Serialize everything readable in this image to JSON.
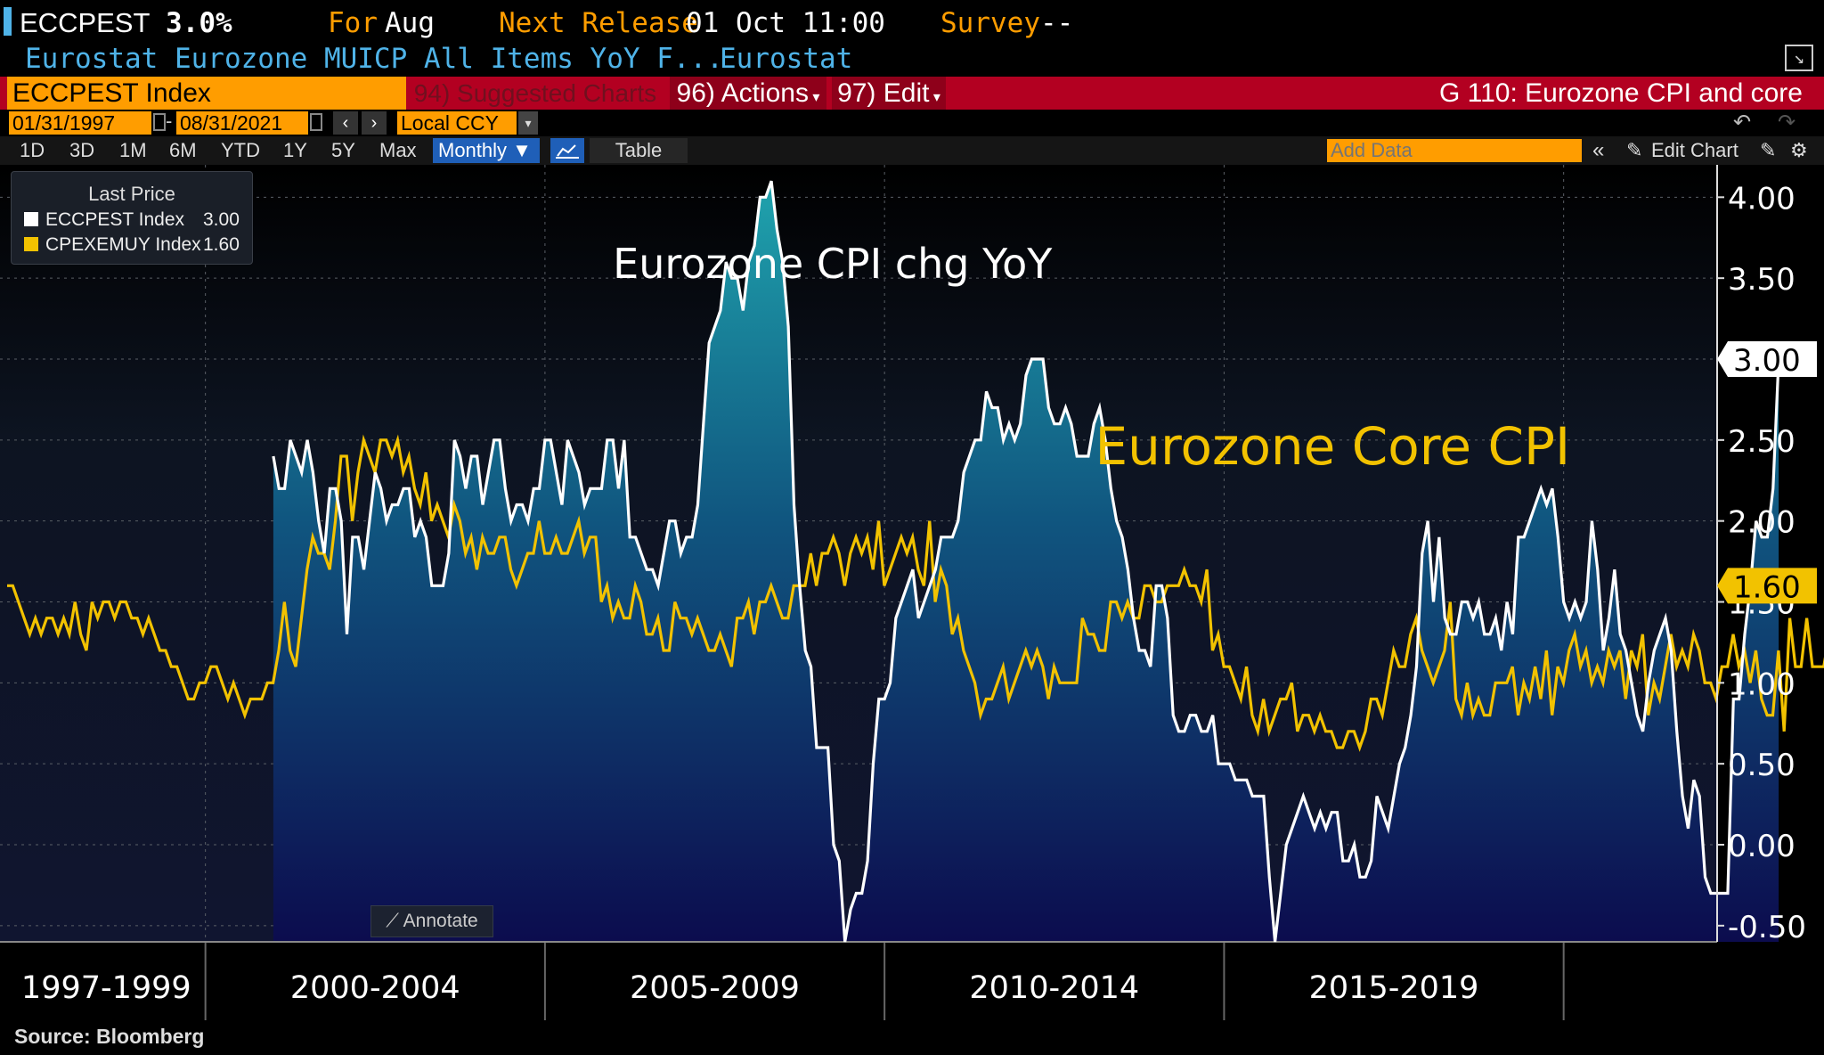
{
  "header": {
    "ticker": "ECCPEST",
    "value": "3.0%",
    "for_label": "For",
    "for_value": "Aug",
    "next_release_label": "Next Release",
    "next_release_value": "01 Oct 11:00",
    "survey_label": "Survey",
    "survey_value": "--",
    "description": "Eurostat Eurozone MUICP All Items YoY F...",
    "source_name": "Eurostat"
  },
  "toolbar": {
    "security": "ECCPEST Index",
    "suggested": "94) Suggested Charts",
    "actions": "96) Actions",
    "edit": "97) Edit",
    "chart_title": "G 110: Eurozone CPI and core",
    "start_date": "01/31/1997",
    "end_date": "08/31/2021",
    "currency": "Local CCY",
    "ranges": [
      "1D",
      "3D",
      "1M",
      "6M",
      "YTD",
      "1Y",
      "5Y",
      "Max"
    ],
    "frequency": "Monthly",
    "table_label": "Table",
    "add_data_placeholder": "Add Data",
    "edit_chart": "Edit Chart"
  },
  "legend": {
    "title": "Last Price",
    "items": [
      {
        "label": "ECCPEST Index",
        "value": "3.00"
      },
      {
        "label": "CPEXEMUY Index",
        "value": "1.60"
      }
    ]
  },
  "annotate_label": "Annotate",
  "source": "Source: Bloomberg",
  "colors": {
    "headline": "#ffffff",
    "core": "#f2c200",
    "orange": "#ff9d00",
    "red": "#b30021"
  },
  "chart_data": {
    "type": "area",
    "annotations": [
      "Eurozone CPI chg YoY",
      "Eurozone Core CPI"
    ],
    "x_range": [
      1997.08,
      2021.67
    ],
    "ylim": [
      -0.6,
      4.2
    ],
    "yticks": [
      "-0.50",
      "0.00",
      "0.50",
      "1.00",
      "1.50",
      "2.00",
      "2.50",
      "3.00",
      "3.50",
      "4.00"
    ],
    "period_labels": [
      "1997-1999",
      "2000-2004",
      "2005-2009",
      "2010-2014",
      "2015-2019"
    ],
    "period_boundaries": [
      2000.0,
      2005.0,
      2010.0,
      2015.0,
      2020.0
    ],
    "last_values": [
      "3.00",
      "1.60"
    ],
    "series": [
      {
        "name": "ECCPEST Index",
        "x_start": 2001.0,
        "values": [
          2.4,
          2.2,
          2.2,
          2.5,
          2.4,
          2.3,
          2.5,
          2.3,
          2.0,
          1.8,
          2.2,
          2.2,
          2.0,
          1.3,
          1.9,
          1.9,
          1.7,
          2.0,
          2.3,
          2.2,
          2.0,
          2.1,
          2.1,
          2.2,
          2.2,
          1.9,
          2.0,
          1.9,
          1.6,
          1.6,
          1.6,
          1.8,
          2.5,
          2.4,
          2.2,
          2.4,
          2.4,
          2.1,
          2.3,
          2.5,
          2.5,
          2.2,
          2.0,
          2.1,
          2.1,
          2.0,
          2.2,
          2.2,
          2.5,
          2.5,
          2.3,
          2.1,
          2.5,
          2.4,
          2.3,
          2.1,
          2.2,
          2.2,
          2.2,
          2.5,
          2.5,
          2.2,
          2.5,
          1.9,
          1.9,
          1.8,
          1.7,
          1.7,
          1.6,
          1.8,
          2.0,
          2.0,
          1.8,
          1.9,
          1.9,
          2.1,
          2.6,
          3.1,
          3.2,
          3.3,
          3.6,
          3.5,
          3.5,
          3.3,
          3.6,
          3.7,
          4.0,
          4.0,
          4.1,
          3.8,
          3.6,
          3.2,
          2.1,
          1.6,
          1.2,
          1.1,
          0.6,
          0.6,
          0.6,
          0.0,
          -0.1,
          -0.6,
          -0.4,
          -0.3,
          -0.3,
          -0.1,
          0.5,
          0.9,
          0.9,
          1.0,
          1.4,
          1.5,
          1.6,
          1.7,
          1.4,
          1.5,
          1.6,
          1.7,
          1.9,
          1.9,
          1.9,
          2.0,
          2.3,
          2.4,
          2.5,
          2.5,
          2.8,
          2.7,
          2.7,
          2.5,
          2.6,
          2.5,
          2.6,
          2.9,
          3.0,
          3.0,
          3.0,
          2.7,
          2.6,
          2.6,
          2.7,
          2.6,
          2.4,
          2.4,
          2.4,
          2.6,
          2.7,
          2.5,
          2.2,
          2.0,
          1.9,
          1.7,
          1.4,
          1.2,
          1.2,
          1.1,
          1.6,
          1.6,
          1.4,
          0.8,
          0.7,
          0.7,
          0.8,
          0.8,
          0.7,
          0.7,
          0.8,
          0.5,
          0.5,
          0.5,
          0.4,
          0.4,
          0.4,
          0.3,
          0.3,
          0.3,
          -0.2,
          -0.6,
          -0.3,
          0.0,
          0.1,
          0.2,
          0.3,
          0.2,
          0.1,
          0.2,
          0.1,
          0.2,
          0.2,
          -0.1,
          -0.1,
          0.0,
          -0.2,
          -0.2,
          -0.1,
          0.3,
          0.2,
          0.1,
          0.3,
          0.5,
          0.6,
          0.8,
          1.1,
          1.8,
          2.0,
          1.5,
          1.9,
          1.4,
          1.3,
          1.3,
          1.5,
          1.5,
          1.4,
          1.5,
          1.3,
          1.3,
          1.4,
          1.2,
          1.5,
          1.3,
          1.9,
          1.9,
          2.0,
          2.1,
          2.2,
          2.1,
          2.2,
          1.9,
          1.5,
          1.4,
          1.5,
          1.4,
          1.5,
          2.0,
          1.7,
          1.2,
          1.4,
          1.7,
          1.3,
          1.2,
          1.0,
          0.8,
          0.7,
          1.0,
          1.2,
          1.3,
          1.4,
          1.2,
          0.7,
          0.3,
          0.1,
          0.4,
          0.3,
          -0.2,
          -0.3,
          -0.3,
          -0.3,
          -0.3,
          0.9,
          0.9,
          1.3,
          1.6,
          2.0,
          1.9,
          1.9,
          2.2,
          3.0
        ]
      },
      {
        "name": "CPEXEMUY Index",
        "x_start": 1997.08,
        "values": [
          1.6,
          1.6,
          1.5,
          1.4,
          1.3,
          1.4,
          1.3,
          1.4,
          1.4,
          1.3,
          1.4,
          1.3,
          1.5,
          1.3,
          1.2,
          1.5,
          1.4,
          1.5,
          1.5,
          1.4,
          1.5,
          1.5,
          1.4,
          1.4,
          1.3,
          1.4,
          1.3,
          1.2,
          1.2,
          1.1,
          1.1,
          1.0,
          0.9,
          0.9,
          1.0,
          1.0,
          1.1,
          1.1,
          1.0,
          0.9,
          1.0,
          0.9,
          0.8,
          0.9,
          0.9,
          0.9,
          1.0,
          1.0,
          1.2,
          1.5,
          1.2,
          1.1,
          1.4,
          1.7,
          1.9,
          1.8,
          1.8,
          1.7,
          2.0,
          2.4,
          2.4,
          2.0,
          2.3,
          2.5,
          2.4,
          2.3,
          2.5,
          2.5,
          2.4,
          2.5,
          2.3,
          2.4,
          2.2,
          2.1,
          2.3,
          2.0,
          2.1,
          2.0,
          1.9,
          2.1,
          2.0,
          1.8,
          1.9,
          1.7,
          1.9,
          1.8,
          1.8,
          1.9,
          1.9,
          1.7,
          1.6,
          1.7,
          1.8,
          1.8,
          2.0,
          1.8,
          1.8,
          1.9,
          1.8,
          1.8,
          1.9,
          2.0,
          1.8,
          1.9,
          1.9,
          1.5,
          1.6,
          1.4,
          1.5,
          1.4,
          1.4,
          1.6,
          1.5,
          1.3,
          1.3,
          1.4,
          1.2,
          1.2,
          1.5,
          1.4,
          1.4,
          1.3,
          1.4,
          1.3,
          1.2,
          1.2,
          1.3,
          1.2,
          1.1,
          1.4,
          1.4,
          1.5,
          1.3,
          1.5,
          1.5,
          1.6,
          1.5,
          1.4,
          1.4,
          1.6,
          1.6,
          1.6,
          1.8,
          1.6,
          1.8,
          1.8,
          1.9,
          1.8,
          1.6,
          1.8,
          1.9,
          1.8,
          1.9,
          1.7,
          2.0,
          1.6,
          1.7,
          1.8,
          1.9,
          1.8,
          1.9,
          1.7,
          1.6,
          2.0,
          1.5,
          1.7,
          1.6,
          1.3,
          1.4,
          1.2,
          1.1,
          1.0,
          0.8,
          0.9,
          0.9,
          1.0,
          1.1,
          0.9,
          1.0,
          1.1,
          1.2,
          1.1,
          1.2,
          1.1,
          0.9,
          1.1,
          1.0,
          1.0,
          1.0,
          1.0,
          1.4,
          1.3,
          1.3,
          1.2,
          1.2,
          1.5,
          1.5,
          1.4,
          1.5,
          1.4,
          1.4,
          1.6,
          1.6,
          1.5,
          1.5,
          1.6,
          1.6,
          1.6,
          1.7,
          1.6,
          1.6,
          1.5,
          1.7,
          1.2,
          1.3,
          1.1,
          1.1,
          1.0,
          0.9,
          1.1,
          0.8,
          0.7,
          0.9,
          0.7,
          0.8,
          0.9,
          0.9,
          1.0,
          0.7,
          0.8,
          0.8,
          0.7,
          0.8,
          0.7,
          0.7,
          0.6,
          0.6,
          0.7,
          0.7,
          0.6,
          0.7,
          0.9,
          0.9,
          0.8,
          1.0,
          1.2,
          1.1,
          1.1,
          1.3,
          1.4,
          1.2,
          1.1,
          1.0,
          1.1,
          1.2,
          1.5,
          0.9,
          0.8,
          1.0,
          0.8,
          0.9,
          0.8,
          0.8,
          1.0,
          1.0,
          1.0,
          1.1,
          0.8,
          1.0,
          0.9,
          1.1,
          0.9,
          1.2,
          0.8,
          1.1,
          1.0,
          1.2,
          1.3,
          1.1,
          1.2,
          1.0,
          1.1,
          1.0,
          1.2,
          1.1,
          1.2,
          0.9,
          1.2,
          1.1,
          1.3,
          0.8,
          1.0,
          0.9,
          1.1,
          1.3,
          1.1,
          1.2,
          1.1,
          1.3,
          1.2,
          1.0,
          1.0,
          0.9,
          1.1,
          1.1,
          1.3,
          1.1,
          1.2,
          1.0,
          1.2,
          0.9,
          0.8,
          0.8,
          1.2,
          0.7,
          1.4,
          1.1,
          1.1,
          1.4,
          1.1,
          1.1,
          1.1,
          1.3,
          1.2,
          1.3,
          1.2,
          1.0,
          1.1,
          1.2,
          0.9,
          0.8,
          1.0,
          0.9,
          1.0,
          1.2,
          1.1,
          1.3,
          1.2,
          1.0,
          1.2,
          1.5,
          1.3,
          1.2,
          1.2,
          1.0,
          0.9,
          0.8,
          0.8,
          0.6,
          0.4,
          0.2,
          0.2,
          0.2,
          0.2,
          0.2,
          0.2,
          1.4,
          1.1,
          0.9,
          0.8,
          1.0,
          0.7,
          0.9,
          0.7,
          1.6
        ]
      }
    ]
  }
}
